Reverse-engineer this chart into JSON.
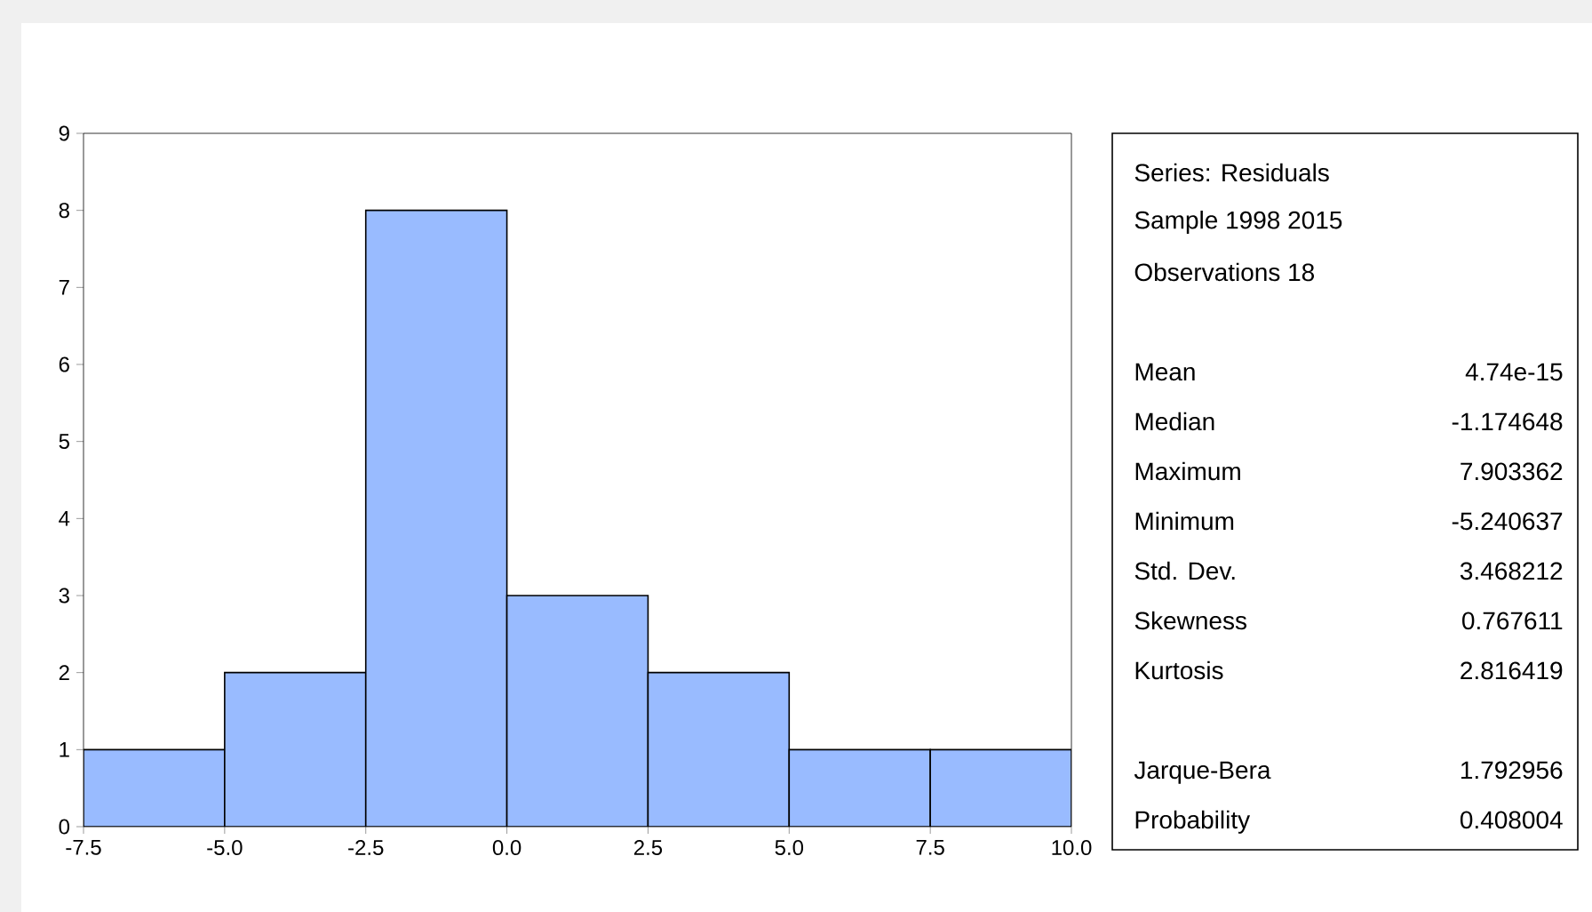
{
  "chart_data": {
    "type": "histogram",
    "bins": [
      -7.5,
      -5.0,
      -2.5,
      0.0,
      2.5,
      5.0,
      7.5,
      10.0
    ],
    "values": [
      1,
      2,
      8,
      3,
      2,
      1,
      1
    ],
    "color": "#99bbff",
    "xlim": [
      -7.5,
      10.0
    ],
    "xticks": [
      -7.5,
      {
        "value": -5.0,
        "label": "-5.0"
      },
      -2.5,
      {
        "value": 0.0,
        "label": "0.0"
      },
      2.5,
      {
        "value": 5.0,
        "label": "5.0"
      },
      7.5,
      {
        "value": 10.0,
        "label": "10.0"
      }
    ],
    "ylim": [
      0,
      9
    ],
    "yticks": [
      0,
      1,
      2,
      3,
      4,
      5,
      6,
      7,
      8,
      9
    ],
    "grid": false,
    "annotations": [
      "Series: Residuals",
      "Sample 1998 2015",
      "Observations 18",
      "Mean",
      "4.74e-15",
      "Median",
      "-1.174648",
      "Maximum",
      "7.903362",
      "Minimum",
      "-5.240637",
      "Std. Dev.",
      "3.468212",
      "Skewness",
      "0.767611",
      "Kurtosis",
      "2.816419",
      "Jarque-Bera",
      "1.792956",
      "Probability",
      "0.408004"
    ]
  }
}
